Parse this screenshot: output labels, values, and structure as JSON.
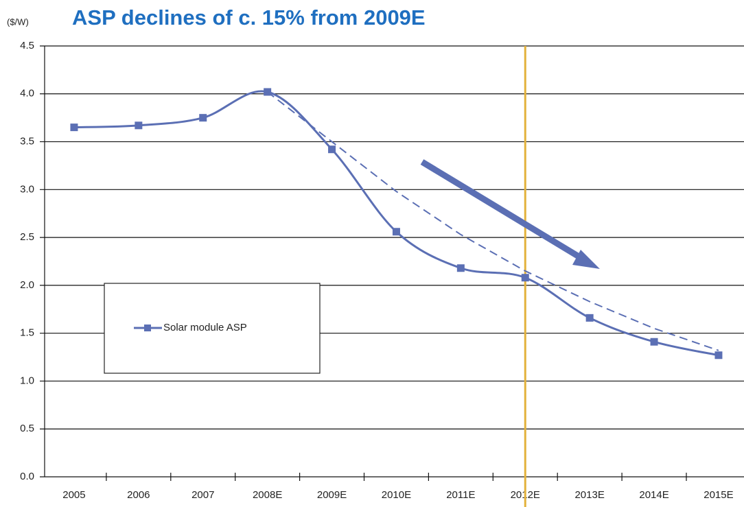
{
  "chart_data": {
    "type": "line",
    "title": "ASP declines of c. 15% from 2009E",
    "y_label": "($/W)",
    "categories": [
      "2005",
      "2006",
      "2007",
      "2008E",
      "2009E",
      "2010E",
      "2011E",
      "2012E",
      "2013E",
      "2014E",
      "2015E"
    ],
    "series": [
      {
        "name": "Solar module ASP",
        "color": "#5b6fb4",
        "smooth": true,
        "marker": "square",
        "values": [
          3.65,
          3.67,
          3.75,
          4.02,
          3.42,
          2.56,
          2.18,
          2.08,
          1.66,
          1.41,
          1.27
        ]
      },
      {
        "color": "#5b6fb4",
        "dashed": true,
        "values": [
          null,
          null,
          null,
          4.02,
          3.5,
          2.98,
          2.53,
          2.15,
          1.83,
          1.55,
          1.32
        ]
      }
    ],
    "ylim": [
      0,
      4.5
    ],
    "yticks": [
      {
        "value": 0,
        "label": "0.0"
      },
      0.5,
      {
        "value": 1,
        "label": "1.0"
      },
      1.5,
      {
        "value": 2,
        "label": "2.0"
      },
      2.5,
      {
        "value": 3,
        "label": "3.0"
      },
      3.5,
      {
        "value": 4,
        "label": "4.0"
      },
      4.5
    ],
    "grid": true,
    "vline": {
      "category": 7,
      "color": "#e3b23c"
    }
  }
}
